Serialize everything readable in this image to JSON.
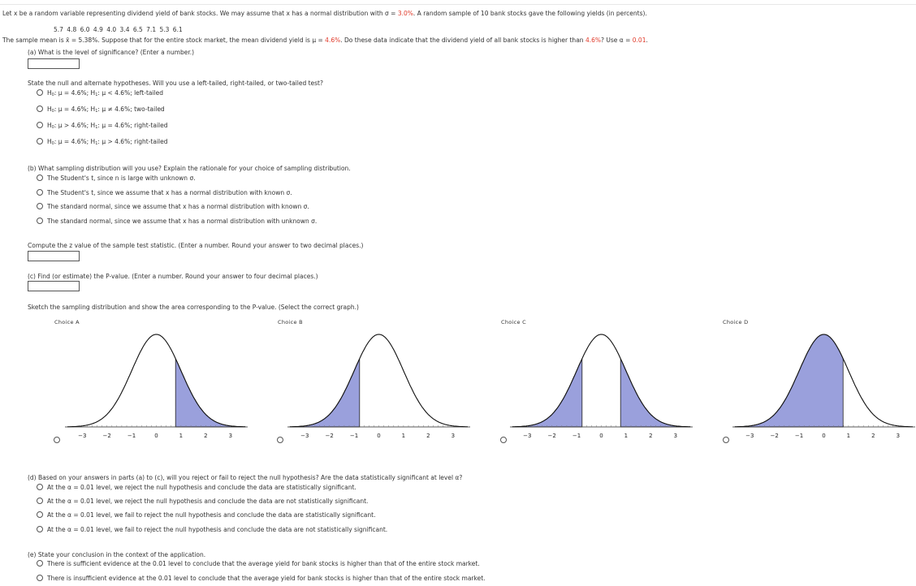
{
  "problem": {
    "intro_a": "Let x be a random variable representing dividend yield of bank stocks. We may assume that x has a normal distribution with σ = ",
    "sigma": "3.0%",
    "intro_b": ". A random sample of 10 bank stocks gave the following yields (in percents).",
    "data_values": "5.7   4.8   6.0   4.9   4.0   3.4   6.5   7.1   5.3   6.1",
    "mean_a": "The sample mean is x̄ = 5.38%. Suppose that for the entire stock market, the mean dividend yield is μ = ",
    "mu": "4.6%",
    "mean_b": ". Do these data indicate that the dividend yield of all bank stocks is higher than ",
    "mu2": "4.6%",
    "mean_c": "? Use α = ",
    "alpha": "0.01",
    "mean_d": "."
  },
  "part_a": {
    "question": "(a) What is the level of significance? (Enter a number.)",
    "hyp_question": "State the null and alternate hypotheses. Will you use a left-tailed, right-tailed, or two-tailed test?",
    "options": [
      {
        "h0": "μ = 4.6%",
        "h1": "μ < 4.6%; left-tailed"
      },
      {
        "h0": "μ = 4.6%",
        "h1": "μ ≠ 4.6%; two-tailed"
      },
      {
        "h0": "μ > 4.6%",
        "h1": "μ = 4.6%; right-tailed"
      },
      {
        "h0": "μ = 4.6%",
        "h1": "μ > 4.6%; right-tailed"
      }
    ]
  },
  "part_b": {
    "question": "(b) What sampling distribution will you use? Explain the rationale for your choice of sampling distribution.",
    "options": [
      "The Student's t, since n is large with unknown σ.",
      "The Student's t, since we assume that x has a normal distribution with known σ.",
      "The standard normal, since we assume that x has a normal distribution with known σ.",
      "The standard normal, since we assume that x has a normal distribution with unknown σ."
    ],
    "z_question": "Compute the z value of the sample test statistic. (Enter a number. Round your answer to two decimal places.)"
  },
  "part_c": {
    "question": "(c) Find (or estimate) the P-value. (Enter a number. Round your answer to four decimal places.)",
    "sketch": "Sketch the sampling distribution and show the area corresponding to the P-value. (Select the correct graph.)",
    "choices": [
      "Choice A",
      "Choice B",
      "Choice C",
      "Choice D"
    ],
    "ticks": [
      "−3",
      "−2",
      "−1",
      "0",
      "1",
      "2",
      "3"
    ]
  },
  "part_d": {
    "question": "(d) Based on your answers in parts (a) to (c), will you reject or fail to reject the null hypothesis? Are the data statistically significant at level α?",
    "options": [
      "At the α = 0.01 level, we reject the null hypothesis and conclude the data are statistically significant.",
      "At the α = 0.01 level, we reject the null hypothesis and conclude the data are not statistically significant.",
      "At the α = 0.01 level, we fail to reject the null hypothesis and conclude the data are statistically significant.",
      "At the α = 0.01 level, we fail to reject the null hypothesis and conclude the data are not statistically significant."
    ]
  },
  "part_e": {
    "question": "(e) State your conclusion in the context of the application.",
    "options": [
      "There is sufficient evidence at the 0.01 level to conclude that the average yield for bank stocks is higher than that of the entire stock market.",
      "There is insufficient evidence at the 0.01 level to conclude that the average yield for bank stocks is higher than that of the entire stock market."
    ]
  },
  "colors": {
    "shade": "#9aa0dc",
    "accent": "#e03a2a"
  }
}
